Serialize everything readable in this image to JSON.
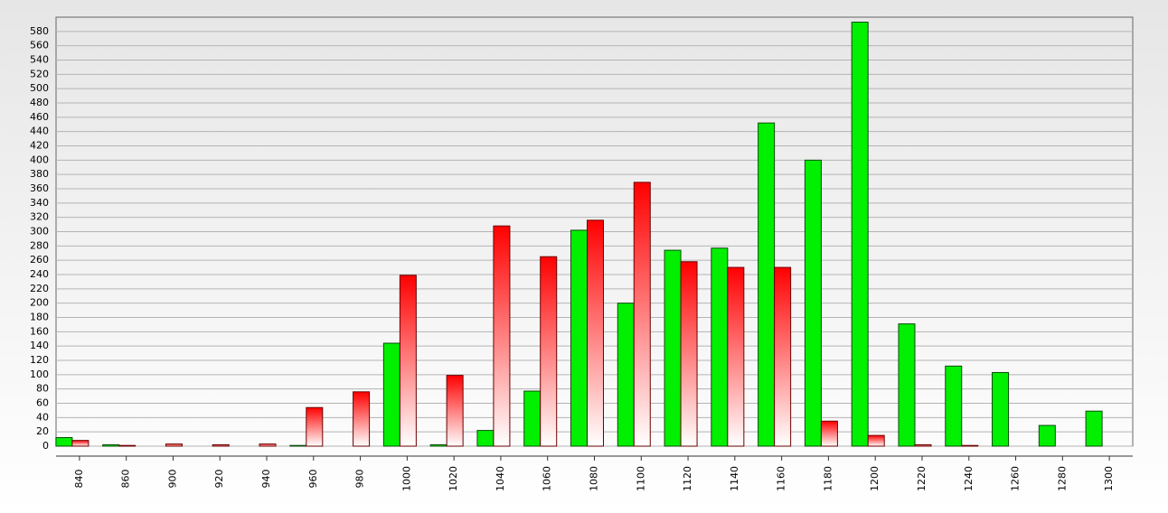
{
  "chart_data": {
    "type": "bar",
    "categories": [
      "840",
      "860",
      "900",
      "920",
      "940",
      "960",
      "980",
      "1000",
      "1020",
      "1040",
      "1060",
      "1080",
      "1100",
      "1120",
      "1140",
      "1160",
      "1180",
      "1200",
      "1220",
      "1240",
      "1260",
      "1280",
      "1300"
    ],
    "series": [
      {
        "color": "#00f000",
        "values": [
          12,
          2,
          0,
          0,
          0,
          1,
          0,
          144,
          2,
          22,
          77,
          302,
          200,
          274,
          277,
          452,
          400,
          593,
          171,
          112,
          103,
          29,
          49
        ]
      },
      {
        "color": "#ff0000",
        "values": [
          8,
          1,
          3,
          2,
          3,
          54,
          76,
          239,
          99,
          308,
          265,
          316,
          369,
          258,
          250,
          250,
          35,
          15,
          2,
          1,
          0,
          0,
          0
        ]
      }
    ],
    "ylim": [
      0,
      600
    ],
    "yticks": [
      0,
      20,
      40,
      60,
      80,
      100,
      120,
      140,
      160,
      180,
      200,
      220,
      240,
      260,
      280,
      300,
      320,
      340,
      360,
      380,
      400,
      420,
      440,
      460,
      480,
      500,
      520,
      540,
      560,
      580
    ],
    "grid": true
  }
}
